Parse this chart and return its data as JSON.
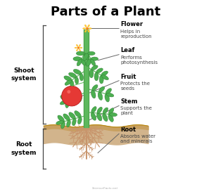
{
  "title": "Parts of a Plant",
  "title_fontsize": 13,
  "title_fontweight": "bold",
  "bg_color": "#ffffff",
  "shoot_label": "Shoot\nsystem",
  "root_label": "Root\nsystem",
  "stem_color": "#5cb85c",
  "stem_edge": "#3d8b3d",
  "leaf_color": "#4caf50",
  "leaf_edge": "#2e7d32",
  "leaf_dark": "#388e3c",
  "flower_petal": "#fdd835",
  "flower_center": "#ff8f00",
  "fruit_color": "#e53935",
  "fruit_edge": "#b71c1c",
  "root_color": "#c8956c",
  "root_edge": "#a0724a",
  "soil_top": "#b8860b",
  "soil_fill": "#c8a060",
  "soil_bg": "#d2b48c",
  "bracket_color": "#444444",
  "label_bold_color": "#000000",
  "label_desc_color": "#444444",
  "line_color": "#666666",
  "watermark": "ScienceFacts.net"
}
